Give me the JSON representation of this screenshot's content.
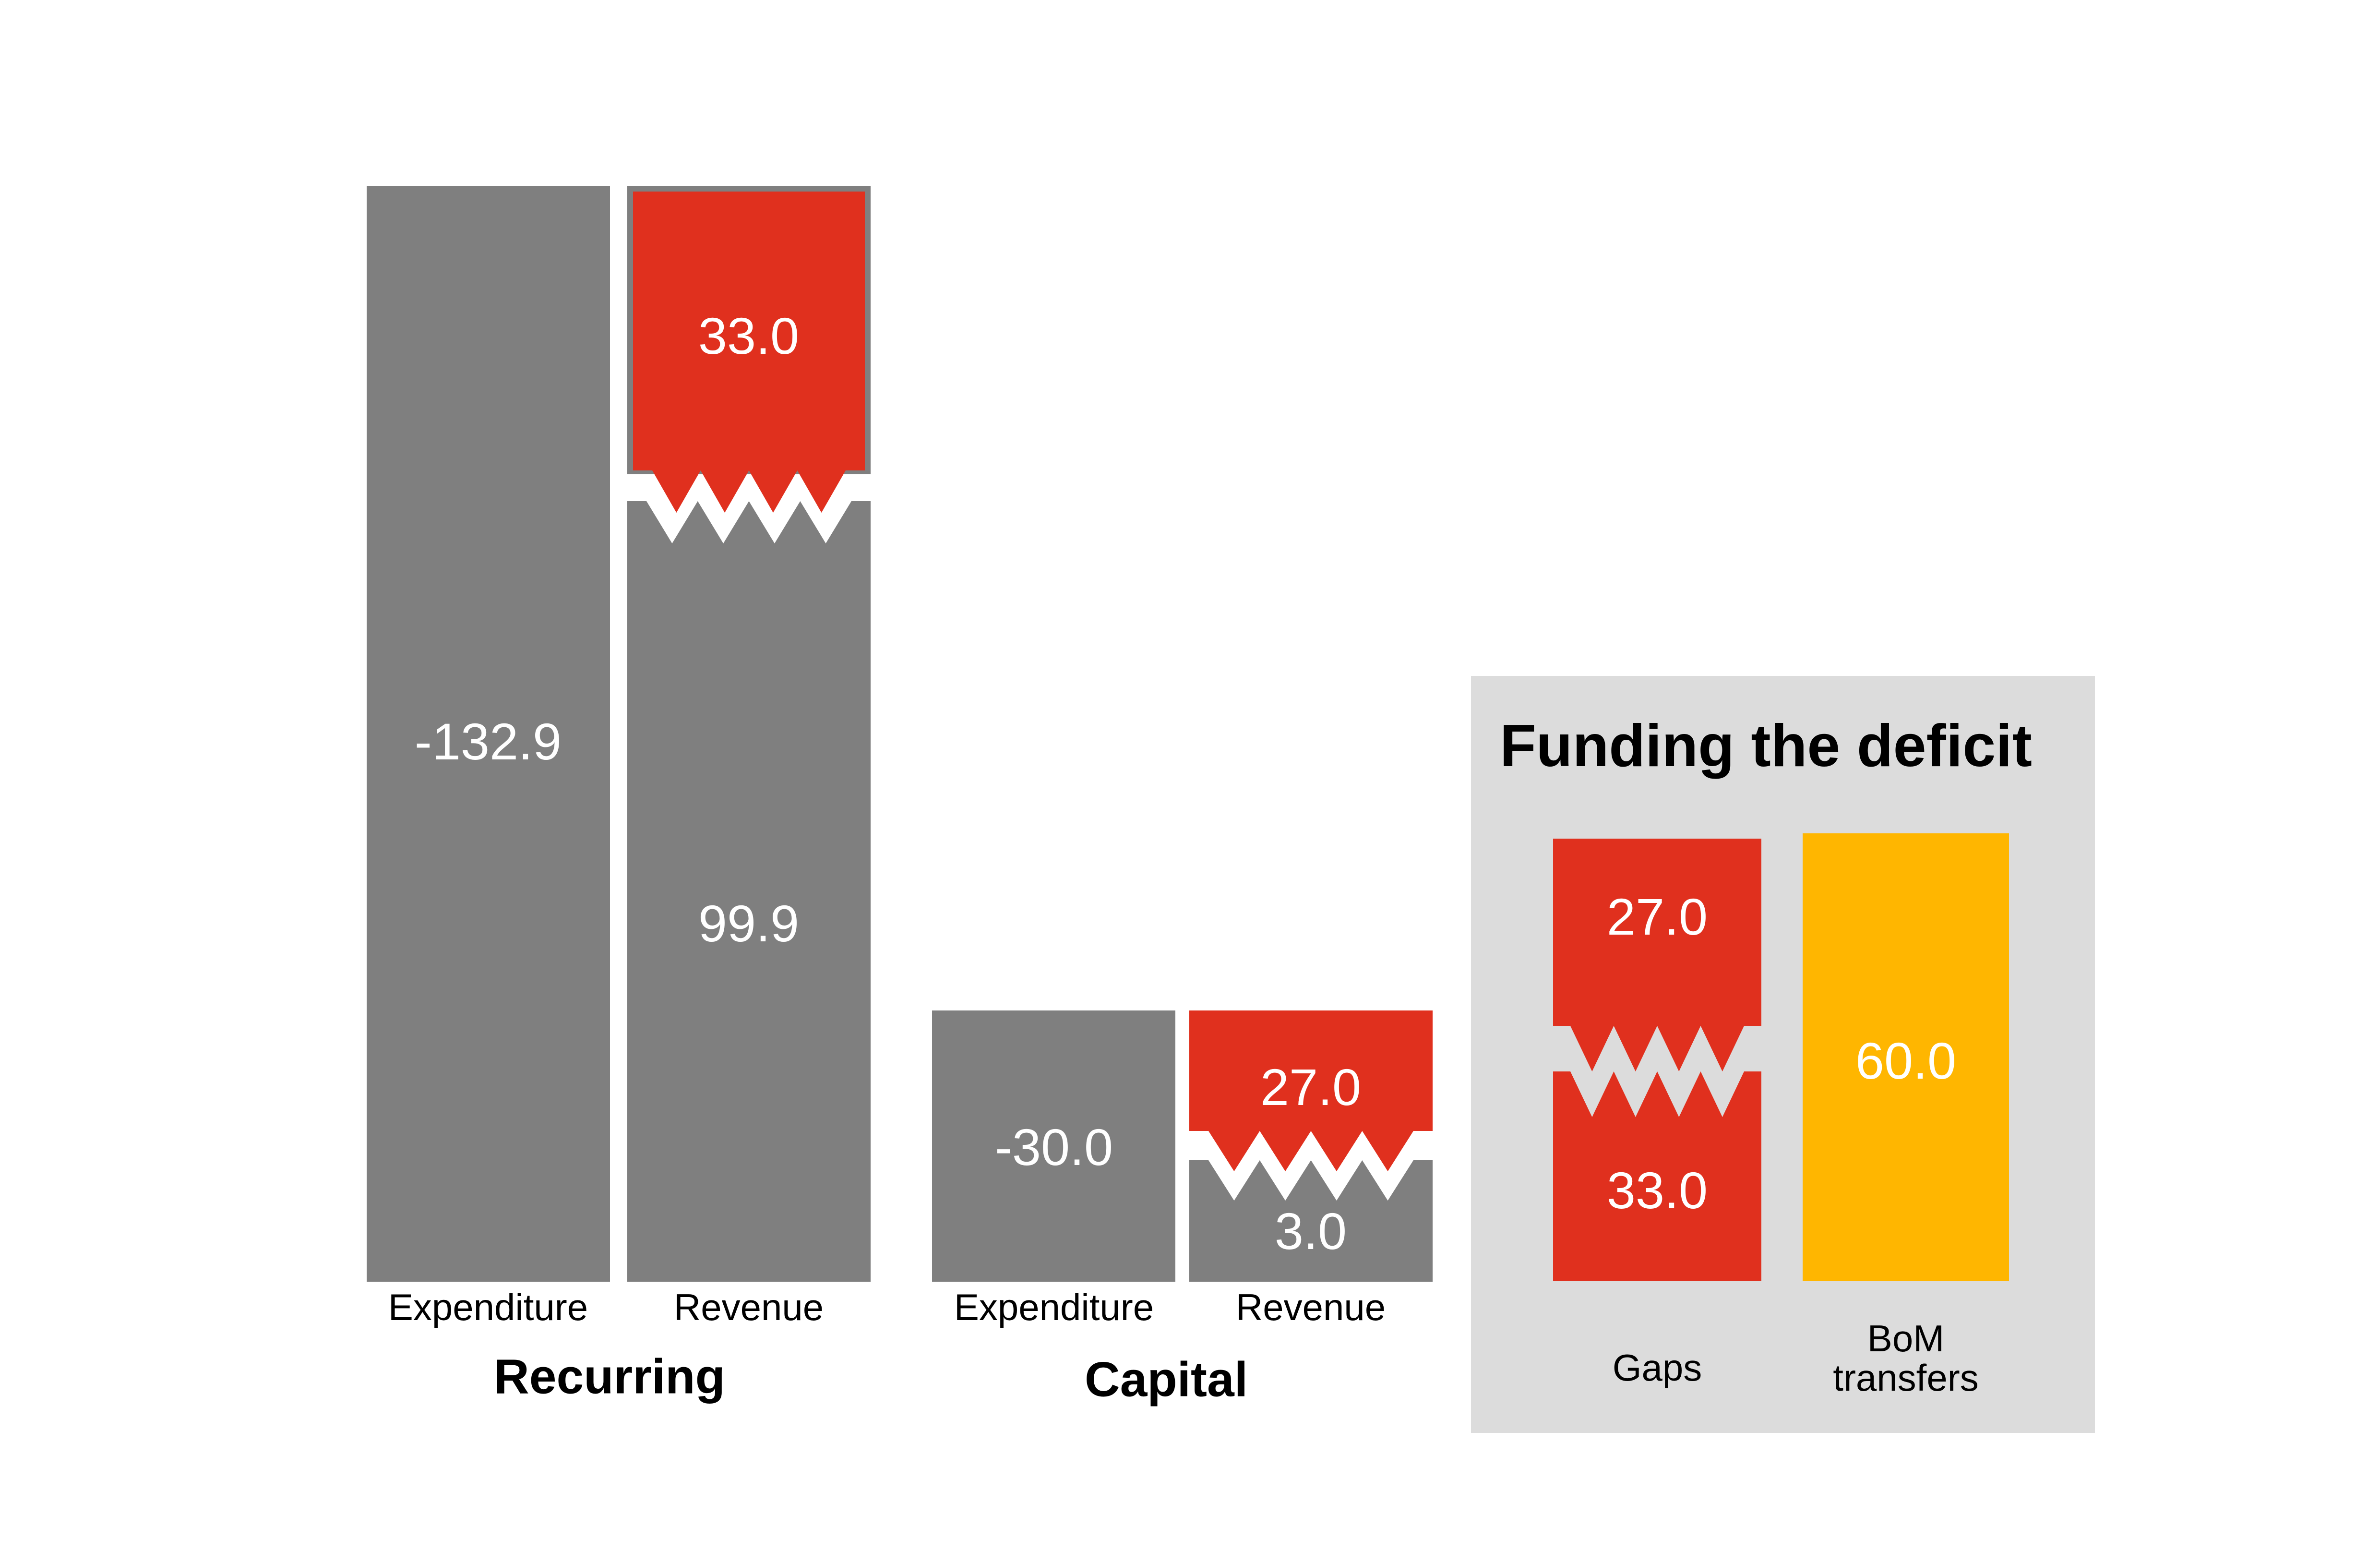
{
  "chart_data": {
    "type": "bar",
    "title": "",
    "layout_hints": {
      "axes_hidden": true,
      "grid": false,
      "broken_bars": true,
      "legend": "none",
      "funding_panel_position": "right"
    },
    "groups": [
      {
        "label": "Recurring",
        "bars": [
          {
            "category": "Expenditure",
            "value": -132.9,
            "label": "-132.9",
            "color_role": "bar_gray"
          },
          {
            "category": "Revenue",
            "segments": [
              {
                "name": "deficit-gap",
                "value": 33.0,
                "label": "33.0",
                "color_role": "gap_red"
              },
              {
                "name": "revenue",
                "value": 99.9,
                "label": "99.9",
                "color_role": "bar_gray"
              }
            ]
          }
        ]
      },
      {
        "label": "Capital",
        "bars": [
          {
            "category": "Expenditure",
            "value": -30.0,
            "label": "-30.0",
            "color_role": "bar_gray"
          },
          {
            "category": "Revenue",
            "segments": [
              {
                "name": "deficit-gap",
                "value": 27.0,
                "label": "27.0",
                "color_role": "gap_red"
              },
              {
                "name": "revenue",
                "value": 3.0,
                "label": "3.0",
                "color_role": "bar_gray"
              }
            ]
          }
        ]
      },
      {
        "label": "Funding the deficit",
        "bars": [
          {
            "category": "Gaps",
            "segments": [
              {
                "name": "capital-gap",
                "value": 27.0,
                "label": "27.0",
                "color_role": "gap_red"
              },
              {
                "name": "recurring-gap",
                "value": 33.0,
                "label": "33.0",
                "color_role": "gap_red"
              }
            ]
          },
          {
            "category": "BoM transfers",
            "category_lines": [
              "BoM",
              "transfers"
            ],
            "value": 60.0,
            "label": "60.0",
            "color_role": "transfer_yellow"
          }
        ]
      }
    ],
    "palette": {
      "bar_gray": "#7F7F7F",
      "gap_red": "#E0301E",
      "transfer_yellow": "#FFB600",
      "panel_background": "#DCDCDC",
      "red_frame_gray": "#7F7F7F",
      "value_text": "#FFFFFF",
      "label_text": "#000000",
      "page_background": "#FFFFFF"
    }
  }
}
